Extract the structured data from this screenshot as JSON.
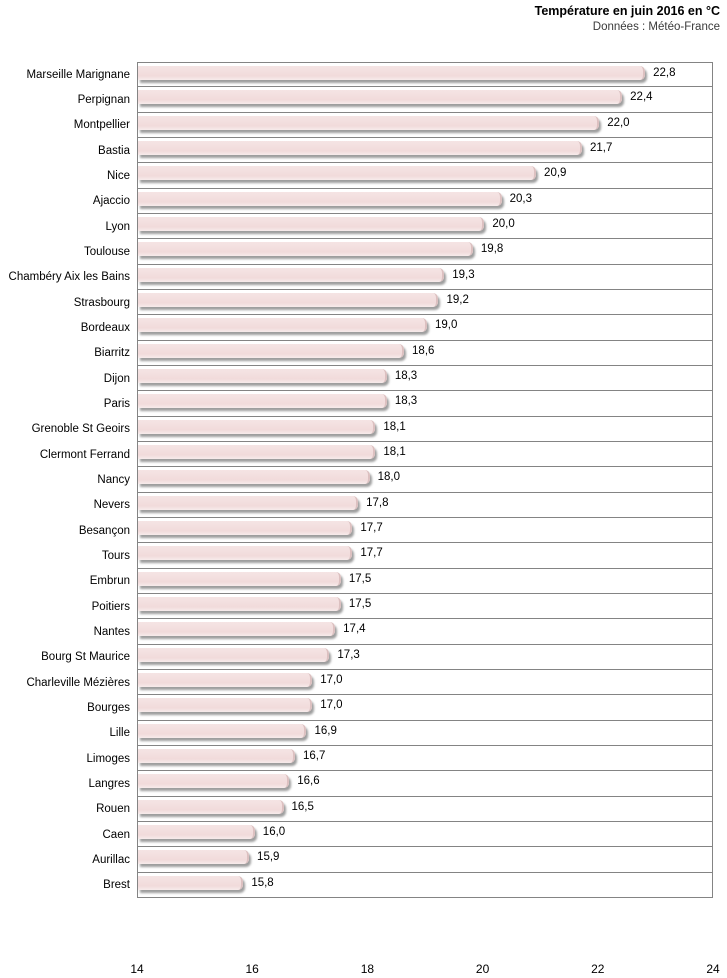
{
  "header": {
    "title": "Température en juin 2016 en °C",
    "subtitle": "Données : Météo-France"
  },
  "chart_data": {
    "type": "bar",
    "orientation": "horizontal",
    "title": "Température en juin 2016 en °C",
    "subtitle": "Données : Météo-France",
    "xlabel": "",
    "ylabel": "",
    "xlim": [
      14,
      24
    ],
    "x_ticks": [
      14,
      16,
      18,
      20,
      22,
      24
    ],
    "grid": "horizontal-row-separators",
    "legend": "none",
    "bar_color": "#f2dede",
    "bar_edge_color": "#dcc0c0",
    "gridline_color": "#848484",
    "categories": [
      "Marseille Marignane",
      "Perpignan",
      "Montpellier",
      "Bastia",
      "Nice",
      "Ajaccio",
      "Lyon",
      "Toulouse",
      "Chambéry Aix les Bains",
      "Strasbourg",
      "Bordeaux",
      "Biarritz",
      "Dijon",
      "Paris",
      "Grenoble St Geoirs",
      "Clermont Ferrand",
      "Nancy",
      "Nevers",
      "Besançon",
      "Tours",
      "Embrun",
      "Poitiers",
      "Nantes",
      "Bourg St Maurice",
      "Charleville Mézières",
      "Bourges",
      "Lille",
      "Limoges",
      "Langres",
      "Rouen",
      "Caen",
      "Aurillac",
      "Brest"
    ],
    "values": [
      22.8,
      22.4,
      22.0,
      21.7,
      20.9,
      20.3,
      20.0,
      19.8,
      19.3,
      19.2,
      19.0,
      18.6,
      18.3,
      18.3,
      18.1,
      18.1,
      18.0,
      17.8,
      17.7,
      17.7,
      17.5,
      17.5,
      17.4,
      17.3,
      17.0,
      17.0,
      16.9,
      16.7,
      16.6,
      16.5,
      16.0,
      15.9,
      15.8
    ],
    "value_labels": [
      "22,8",
      "22,4",
      "22,0",
      "21,7",
      "20,9",
      "20,3",
      "20,0",
      "19,8",
      "19,3",
      "19,2",
      "19,0",
      "18,6",
      "18,3",
      "18,3",
      "18,1",
      "18,1",
      "18,0",
      "17,8",
      "17,7",
      "17,7",
      "17,5",
      "17,5",
      "17,4",
      "17,3",
      "17,0",
      "17,0",
      "16,9",
      "16,7",
      "16,6",
      "16,5",
      "16,0",
      "15,9",
      "15,8"
    ]
  }
}
